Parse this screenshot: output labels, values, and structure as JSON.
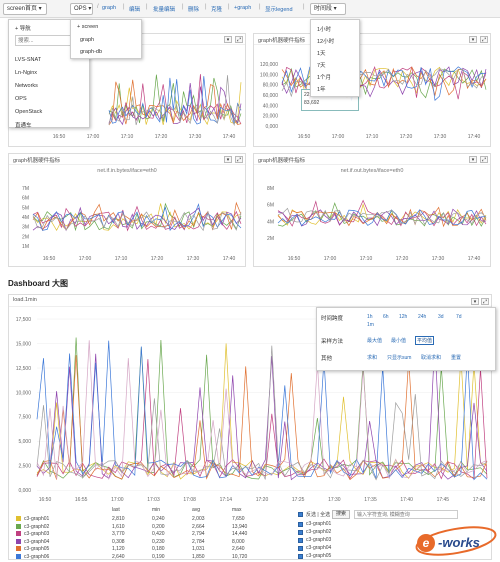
{
  "toolbar": {
    "screen_btn": "screen首页 ▾",
    "ops_btn": "OPS ▾",
    "links": [
      "graph",
      "编辑",
      "批量编辑",
      "删除",
      "克隆",
      "+graph",
      "显示legend"
    ],
    "time_btn": "时间段 ▾"
  },
  "nav_menu": {
    "title": "+ 导航",
    "search_placeholder": "搜索...",
    "items": [
      "LVS-SNAT",
      "Ln-Nginx",
      "Networks",
      "OPS",
      "OpenStack",
      "直通车"
    ]
  },
  "ops_menu": {
    "items": [
      "+ screen",
      "graph",
      "graph-db"
    ]
  },
  "time_menu": {
    "items": [
      "1小时",
      "12小时",
      "1天",
      "7天",
      "1个月",
      "1年"
    ]
  },
  "panels": [
    {
      "title": "",
      "subtitle": "",
      "yticks": [],
      "xticks": [
        "16:50",
        "17:00",
        "17:10",
        "17:20",
        "17:30",
        "17:40"
      ]
    },
    {
      "title": "graph机器硬件指标",
      "subtitle": "",
      "yticks": [
        "120,000",
        "100,000",
        "80,000",
        "60,000",
        "40,000",
        "20,000",
        "0,000"
      ],
      "xticks": [
        "16:50",
        "17:00",
        "17:10",
        "17:20",
        "17:30",
        "17:40"
      ],
      "tooltip": [
        "22:5,04-16 14:00:00",
        "83,692"
      ]
    },
    {
      "title": "graph机器硬件指标",
      "subtitle": "net.if.in.bytes/iface=eth0",
      "yticks": [
        "7M",
        "6M",
        "5M",
        "4M",
        "3M",
        "2M",
        "1M"
      ],
      "xticks": [
        "16:50",
        "17:00",
        "17:10",
        "17:20",
        "17:30",
        "17:40"
      ]
    },
    {
      "title": "graph机器硬件指标",
      "subtitle": "net.if.out.bytes/iface=eth0",
      "yticks": [
        "8M",
        "6M",
        "4M",
        "2M"
      ],
      "xticks": [
        "16:50",
        "17:00",
        "17:10",
        "17:20",
        "17:30",
        "17:40"
      ]
    }
  ],
  "dashboard": {
    "section_title": "Dashboard 大图",
    "chart_title": "load.1min",
    "yticks": [
      "17,500",
      "15,000",
      "12,500",
      "10,000",
      "7,500",
      "5,000",
      "2,500",
      "0,000"
    ],
    "xticks": [
      "16:50",
      "16:55",
      "17:00",
      "17:03",
      "17:08",
      "17:14",
      "17:20",
      "17:25",
      "17:30",
      "17:35",
      "17:40",
      "17:45",
      "17:48"
    ],
    "settings": {
      "time_label": "时间跨度",
      "time_opts": [
        "1h",
        "6h",
        "12h",
        "24h",
        "3d",
        "7d",
        "1m"
      ],
      "sample_label": "采样方法",
      "sample_opts": [
        "最大值",
        "最小值",
        "平均值"
      ],
      "other_label": "其他",
      "other_opts": [
        "求和",
        "只显示sum",
        "取消求和",
        "重置"
      ]
    },
    "legend_headers": [
      "last",
      "min",
      "avg",
      "max"
    ],
    "legend": [
      {
        "name": "c3-graph01",
        "color": "#e0c030",
        "last": "2,810",
        "min": "0,240",
        "avg": "2,003",
        "max": "7,650"
      },
      {
        "name": "c3-graph02",
        "color": "#6aa84f",
        "last": "1,610",
        "min": "0,200",
        "avg": "2,664",
        "max": "13,940"
      },
      {
        "name": "c3-graph03",
        "color": "#c04080",
        "last": "3,770",
        "min": "0,420",
        "avg": "2,794",
        "max": "14,440"
      },
      {
        "name": "c3-graph04",
        "color": "#8e44ad",
        "last": "0,308",
        "min": "0,230",
        "avg": "2,784",
        "max": "8,000"
      },
      {
        "name": "c3-graph05",
        "color": "#e07030",
        "last": "1,120",
        "min": "0,180",
        "avg": "1,031",
        "max": "2,640"
      },
      {
        "name": "c3-graph06",
        "color": "#3c78d8",
        "last": "2,640",
        "min": "0,190",
        "avg": "1,850",
        "max": "10,720"
      }
    ],
    "filter": {
      "checkbox_label": "反选 | 全选",
      "button": "搜索",
      "placeholder": "输入字符查询, 模糊查询"
    },
    "checked_items": [
      "c3-graph01",
      "c3-graph02",
      "c3-graph03",
      "c3-graph04",
      "c3-graph05"
    ]
  }
}
